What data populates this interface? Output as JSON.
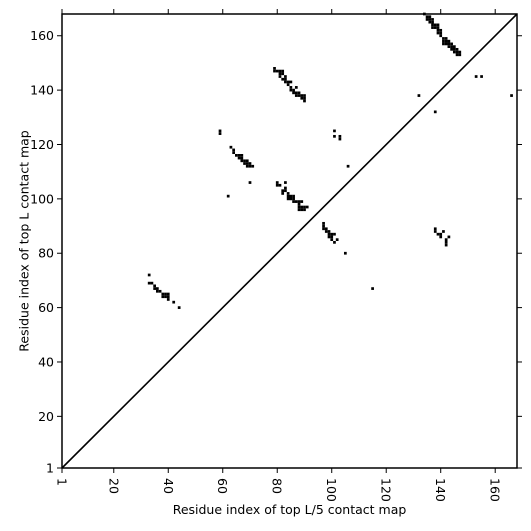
{
  "chart_data": {
    "type": "scatter",
    "title": "",
    "xlabel": "Residue index of top L/5 contact map",
    "ylabel": "Residue index of top L contact map",
    "xlim": [
      1,
      168
    ],
    "ylim": [
      1,
      168
    ],
    "x_ticks": [
      1,
      20,
      40,
      60,
      80,
      100,
      120,
      140,
      160
    ],
    "y_ticks": [
      1,
      20,
      40,
      60,
      80,
      100,
      120,
      140,
      160
    ],
    "x_tick_rotation": -90,
    "grid": false,
    "legend": "none",
    "marker": "square",
    "marker_color": "#000000",
    "diagonal": {
      "from": [
        1,
        1
      ],
      "to": [
        168,
        168
      ],
      "color": "#000000"
    },
    "series": [
      {
        "values": [
          [
            33,
            72
          ],
          [
            33,
            69
          ],
          [
            34,
            69
          ],
          [
            35,
            68
          ],
          [
            35,
            67
          ],
          [
            36,
            67
          ],
          [
            36,
            66
          ],
          [
            37,
            66
          ],
          [
            38,
            65
          ],
          [
            38,
            64
          ],
          [
            39,
            65
          ],
          [
            39,
            64
          ],
          [
            40,
            65
          ],
          [
            40,
            64
          ],
          [
            40,
            63
          ],
          [
            42,
            62
          ],
          [
            44,
            60
          ],
          [
            59,
            125
          ],
          [
            59,
            124
          ],
          [
            62,
            101
          ],
          [
            63,
            119
          ],
          [
            64,
            118
          ],
          [
            64,
            117
          ],
          [
            65,
            116
          ],
          [
            66,
            116
          ],
          [
            66,
            115
          ],
          [
            67,
            116
          ],
          [
            67,
            115
          ],
          [
            67,
            114
          ],
          [
            68,
            114
          ],
          [
            68,
            113
          ],
          [
            69,
            114
          ],
          [
            69,
            113
          ],
          [
            69,
            112
          ],
          [
            70,
            113
          ],
          [
            70,
            112
          ],
          [
            70,
            106
          ],
          [
            71,
            112
          ],
          [
            79,
            148
          ],
          [
            79,
            147
          ],
          [
            80,
            147
          ],
          [
            80,
            106
          ],
          [
            80,
            105
          ],
          [
            81,
            147
          ],
          [
            81,
            146
          ],
          [
            81,
            145
          ],
          [
            81,
            105
          ],
          [
            82,
            147
          ],
          [
            82,
            146
          ],
          [
            82,
            144
          ],
          [
            82,
            103
          ],
          [
            82,
            102
          ],
          [
            83,
            145
          ],
          [
            83,
            144
          ],
          [
            83,
            143
          ],
          [
            83,
            106
          ],
          [
            83,
            104
          ],
          [
            83,
            103
          ],
          [
            84,
            143
          ],
          [
            84,
            142
          ],
          [
            84,
            102
          ],
          [
            84,
            101
          ],
          [
            84,
            100
          ],
          [
            85,
            143
          ],
          [
            85,
            141
          ],
          [
            85,
            140
          ],
          [
            85,
            101
          ],
          [
            85,
            100
          ],
          [
            86,
            140
          ],
          [
            86,
            139
          ],
          [
            86,
            101
          ],
          [
            86,
            100
          ],
          [
            86,
            99
          ],
          [
            87,
            141
          ],
          [
            87,
            139
          ],
          [
            87,
            138
          ],
          [
            87,
            99
          ],
          [
            88,
            139
          ],
          [
            88,
            138
          ],
          [
            88,
            99
          ],
          [
            88,
            98
          ],
          [
            88,
            97
          ],
          [
            88,
            96
          ],
          [
            89,
            138
          ],
          [
            89,
            137
          ],
          [
            89,
            99
          ],
          [
            89,
            97
          ],
          [
            89,
            96
          ],
          [
            90,
            138
          ],
          [
            90,
            137
          ],
          [
            90,
            136
          ],
          [
            90,
            97
          ],
          [
            90,
            96
          ],
          [
            91,
            97
          ],
          [
            97,
            91
          ],
          [
            97,
            90
          ],
          [
            97,
            89
          ],
          [
            98,
            89
          ],
          [
            98,
            88
          ],
          [
            99,
            88
          ],
          [
            99,
            87
          ],
          [
            99,
            86
          ],
          [
            100,
            87
          ],
          [
            100,
            86
          ],
          [
            100,
            85
          ],
          [
            101,
            125
          ],
          [
            101,
            123
          ],
          [
            101,
            87
          ],
          [
            101,
            84
          ],
          [
            102,
            85
          ],
          [
            103,
            123
          ],
          [
            103,
            122
          ],
          [
            105,
            80
          ],
          [
            106,
            112
          ],
          [
            115,
            67
          ],
          [
            132,
            138
          ],
          [
            134,
            168
          ],
          [
            135,
            167
          ],
          [
            135,
            166
          ],
          [
            136,
            167
          ],
          [
            136,
            166
          ],
          [
            136,
            165
          ],
          [
            137,
            166
          ],
          [
            137,
            165
          ],
          [
            137,
            164
          ],
          [
            137,
            163
          ],
          [
            138,
            164
          ],
          [
            138,
            163
          ],
          [
            138,
            132
          ],
          [
            138,
            89
          ],
          [
            138,
            88
          ],
          [
            139,
            164
          ],
          [
            139,
            163
          ],
          [
            139,
            162
          ],
          [
            139,
            161
          ],
          [
            139,
            87
          ],
          [
            140,
            162
          ],
          [
            140,
            161
          ],
          [
            140,
            160
          ],
          [
            140,
            87
          ],
          [
            140,
            86
          ],
          [
            141,
            159
          ],
          [
            141,
            158
          ],
          [
            141,
            157
          ],
          [
            141,
            88
          ],
          [
            142,
            159
          ],
          [
            142,
            158
          ],
          [
            142,
            157
          ],
          [
            142,
            85
          ],
          [
            142,
            84
          ],
          [
            142,
            83
          ],
          [
            143,
            158
          ],
          [
            143,
            157
          ],
          [
            143,
            156
          ],
          [
            143,
            86
          ],
          [
            144,
            157
          ],
          [
            144,
            156
          ],
          [
            144,
            155
          ],
          [
            145,
            156
          ],
          [
            145,
            155
          ],
          [
            145,
            154
          ],
          [
            146,
            155
          ],
          [
            146,
            154
          ],
          [
            146,
            153
          ],
          [
            147,
            154
          ],
          [
            147,
            153
          ],
          [
            153,
            145
          ],
          [
            155,
            145
          ],
          [
            166,
            138
          ]
        ]
      }
    ]
  }
}
